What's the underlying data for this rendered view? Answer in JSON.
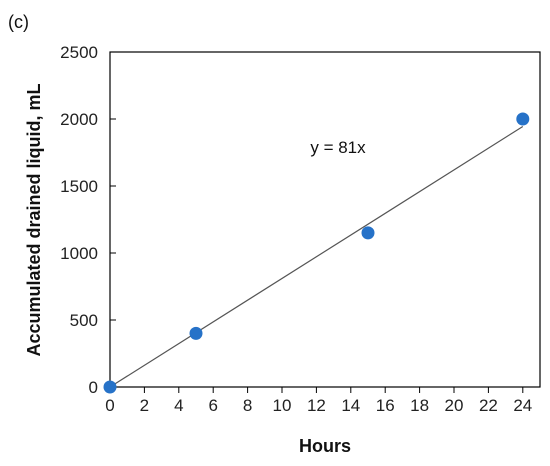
{
  "panel_label": "(c)",
  "chart_data": {
    "type": "scatter",
    "title": "",
    "xlabel": "Hours",
    "ylabel": "Accumulated drained liquid, mL",
    "xlim": [
      0,
      25
    ],
    "ylim": [
      0,
      2500
    ],
    "x_ticks": [
      0,
      2,
      4,
      6,
      8,
      10,
      12,
      14,
      16,
      18,
      20,
      22,
      24
    ],
    "y_ticks": [
      0,
      500,
      1000,
      1500,
      2000,
      2500
    ],
    "grid": false,
    "legend": "none",
    "series": [
      {
        "x": [
          0,
          5,
          15,
          24
        ],
        "y": [
          0,
          400,
          1150,
          2000
        ],
        "color": "#2672C8"
      }
    ],
    "trendline": {
      "slope": 81,
      "intercept": 0,
      "x_range": [
        0,
        24
      ],
      "color": "#555555",
      "equation": "y = 81x"
    }
  }
}
